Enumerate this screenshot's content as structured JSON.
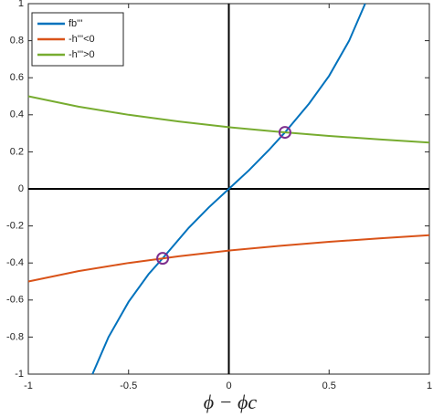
{
  "chart_data": {
    "type": "line",
    "x_label": "ϕ − ϕc",
    "xlim": [
      -1,
      1
    ],
    "xticks": [
      -1,
      -0.5,
      0,
      0.5,
      1
    ],
    "ylim": [
      -1,
      1
    ],
    "yticks": [
      -1,
      -0.8,
      -0.6,
      -0.4,
      -0.2,
      0,
      0.2,
      0.4,
      0.6,
      0.8,
      1
    ],
    "grid": false,
    "zero_lines": true,
    "legend_position": "upper-left",
    "series": [
      {
        "name": "fb'''",
        "color": "#0072bd",
        "x": [
          -0.68,
          -0.6,
          -0.5,
          -0.4,
          -0.33,
          -0.2,
          -0.1,
          0,
          0.1,
          0.2,
          0.28,
          0.4,
          0.5,
          0.6,
          0.68
        ],
        "values": [
          -1,
          -0.8,
          -0.61,
          -0.46,
          -0.375,
          -0.21,
          -0.1,
          0,
          0.1,
          0.21,
          0.305,
          0.46,
          0.61,
          0.8,
          1
        ]
      },
      {
        "name": "-h'''<0",
        "color": "#d95319",
        "x": [
          -1,
          -0.75,
          -0.5,
          -0.25,
          0,
          0.25,
          0.5,
          0.75,
          1
        ],
        "values": [
          -0.5,
          -0.444,
          -0.4,
          -0.364,
          -0.333,
          -0.308,
          -0.286,
          -0.267,
          -0.25
        ]
      },
      {
        "name": "-h'''>0",
        "color": "#77ac30",
        "x": [
          -1,
          -0.75,
          -0.5,
          -0.25,
          0,
          0.25,
          0.5,
          0.75,
          1
        ],
        "values": [
          0.5,
          0.444,
          0.4,
          0.364,
          0.333,
          0.308,
          0.286,
          0.267,
          0.25
        ]
      }
    ],
    "markers": {
      "color": "#7e2f8e",
      "x": [
        0.28,
        -0.33
      ],
      "values": [
        0.305,
        -0.375
      ]
    }
  }
}
